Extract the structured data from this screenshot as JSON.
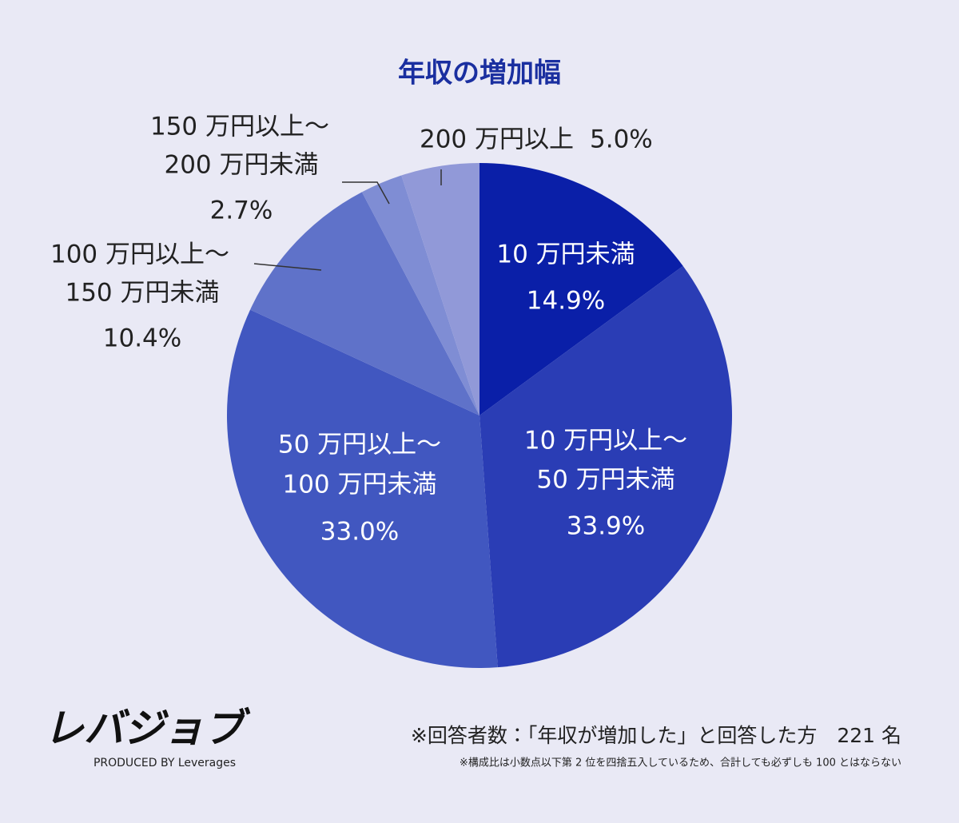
{
  "chart_data": {
    "type": "pie",
    "title": "年収の増加幅",
    "categories": [
      [
        "10 万円未満"
      ],
      [
        "10 万円以上～",
        "50 万円未満"
      ],
      [
        "50 万円以上～",
        "100 万円未満"
      ],
      [
        "100 万円以上～",
        "150 万円未満"
      ],
      [
        "150 万円以上～",
        "200 万円未満"
      ],
      [
        "200 万円以上"
      ]
    ],
    "values": [
      14.9,
      33.9,
      33.0,
      10.4,
      2.7,
      5.0
    ],
    "value_labels": [
      "14.9%",
      "33.9%",
      "33.0%",
      "10.4%",
      "2.7%",
      "5.0%"
    ],
    "colors": [
      "#0a1fa8",
      "#2a3db5",
      "#4157c0",
      "#5f72c9",
      "#7f8dd4",
      "#9199d8"
    ]
  },
  "footer": {
    "logo": "レバジョブ",
    "produced_by": "PRODUCED BY Leverages",
    "note": "※回答者数：「年収が増加した」と回答した方　221 名",
    "footnote": "※構成比は小数点以下第 2 位を四捨五入しているため、合計しても必ずしも 100 とはならない"
  }
}
